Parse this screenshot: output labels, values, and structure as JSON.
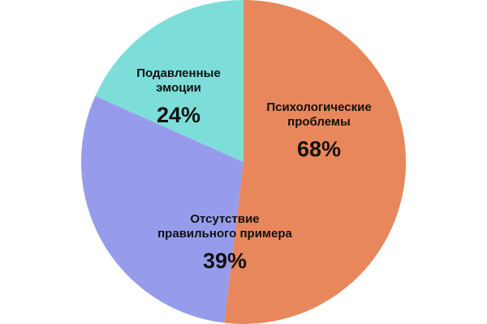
{
  "chart_data": {
    "type": "pie",
    "slices": [
      {
        "label_lines": [
          "Психологические",
          "проблемы"
        ],
        "value_label": "68%",
        "value": 68,
        "color": "#E8875C"
      },
      {
        "label_lines": [
          "Отсутствие",
          "правильного примера"
        ],
        "value_label": "39%",
        "value": 39,
        "color": "#969CEB"
      },
      {
        "label_lines": [
          "Подавленные",
          "эмоции"
        ],
        "value_label": "24%",
        "value": 24,
        "color": "#7DDDD9"
      }
    ],
    "start": "12 o'clock",
    "direction": "clockwise",
    "legend": "none"
  }
}
